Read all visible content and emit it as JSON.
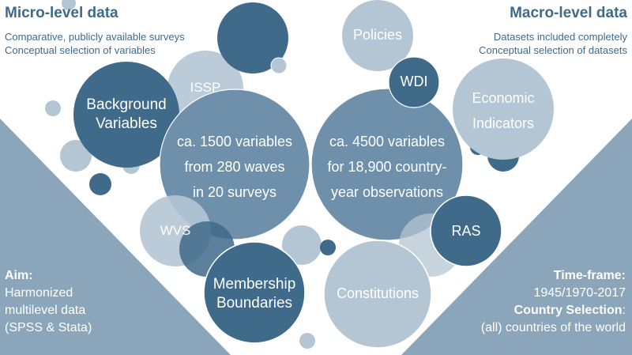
{
  "micro": {
    "title": "Micro-level data",
    "line1": "Comparative, publicly available surveys",
    "line2": "Conceptual selection of variables"
  },
  "macro": {
    "title": "Macro-level data",
    "line1": "Datasets included completely",
    "line2": "Conceptual selection of datasets"
  },
  "aim": {
    "label": "Aim:",
    "line1": "Harmonized",
    "line2": "multilevel data",
    "line3": "(SPSS & Stata)"
  },
  "timeframe": {
    "label": "Time-frame:",
    "value": "1945/1970-2017",
    "selection_label": "Country Selection",
    "selection_colon": ":",
    "selection_value": "(all) countries of the world"
  },
  "bubbles": {
    "issp": "ISSP",
    "background_line1": "Background",
    "background_line2": "Variables",
    "micro_center_line1": "ca. 1500 variables",
    "micro_center_line2": "from 280 waves",
    "micro_center_line3": "in 20 surveys",
    "wvs": "WVS",
    "membership_line1": "Membership",
    "membership_line2": "Boundaries",
    "policies": "Policies",
    "wdi": "WDI",
    "economic_line1": "Economic",
    "economic_line2": "Indicators",
    "macro_center_line1": "ca. 4500 variables",
    "macro_center_line2": "for 18,900 country-",
    "macro_center_line3": "year observations",
    "ras": "RAS",
    "constitutions": "Constitutions"
  },
  "colors": {
    "dark": "#3f6a8a",
    "mid": "#6e90ab",
    "light": "#b4c5d3",
    "panel": "#8ba5ba"
  }
}
